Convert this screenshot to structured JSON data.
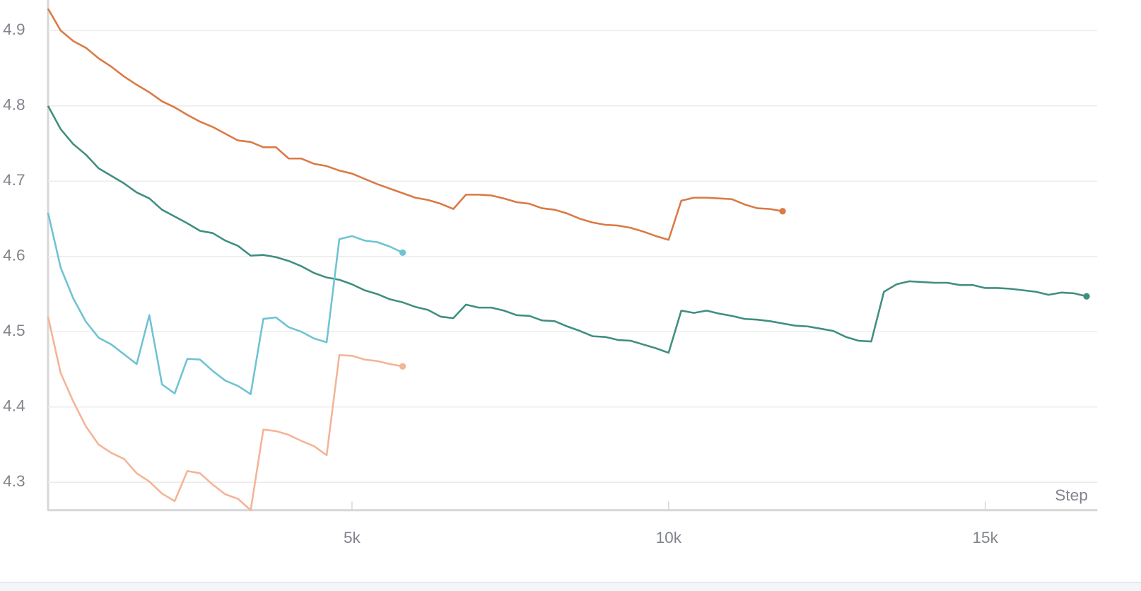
{
  "chart_data": {
    "type": "line",
    "x_label": "Step",
    "xlim": [
      200,
      16770
    ],
    "ylim": [
      4.26,
      4.94
    ],
    "xticks": [
      {
        "value": 5000,
        "label": "5k"
      },
      {
        "value": 10000,
        "label": "10k"
      },
      {
        "value": 15000,
        "label": "15k"
      }
    ],
    "yticks": [
      4.3,
      4.4,
      4.5,
      4.6,
      4.7,
      4.8,
      4.9
    ],
    "grid": true,
    "series": [
      {
        "color": "#da7a45",
        "x": [
          200,
          400,
          600,
          800,
          1000,
          1200,
          1400,
          1600,
          1800,
          2000,
          2200,
          2400,
          2600,
          2800,
          3000,
          3200,
          3400,
          3600,
          3800,
          4000,
          4200,
          4400,
          4600,
          4800,
          5000,
          5200,
          5400,
          5600,
          5800,
          6000,
          6200,
          6400,
          6600,
          6800,
          7000,
          7200,
          7400,
          7600,
          7800,
          8000,
          8200,
          8400,
          8600,
          8800,
          9000,
          9200,
          9400,
          9600,
          9800,
          10000,
          10200,
          10400,
          10600,
          10800,
          11000,
          11200,
          11400,
          11600,
          11800
        ],
        "values": [
          4.929,
          4.9,
          4.886,
          4.877,
          4.863,
          4.852,
          4.839,
          4.828,
          4.818,
          4.806,
          4.798,
          4.788,
          4.779,
          4.772,
          4.763,
          4.754,
          4.752,
          4.745,
          4.745,
          4.73,
          4.73,
          4.723,
          4.72,
          4.714,
          4.71,
          4.703,
          4.696,
          4.69,
          4.684,
          4.678,
          4.675,
          4.67,
          4.663,
          4.682,
          4.682,
          4.681,
          4.677,
          4.672,
          4.67,
          4.664,
          4.662,
          4.657,
          4.65,
          4.645,
          4.642,
          4.641,
          4.638,
          4.633,
          4.627,
          4.622,
          4.674,
          4.678,
          4.678,
          4.677,
          4.676,
          4.669,
          4.664,
          4.663,
          4.66
        ]
      },
      {
        "color": "#3f8f80",
        "x": [
          200,
          400,
          600,
          800,
          1000,
          1200,
          1400,
          1600,
          1800,
          2000,
          2200,
          2400,
          2600,
          2800,
          3000,
          3200,
          3400,
          3600,
          3800,
          4000,
          4200,
          4400,
          4600,
          4800,
          5000,
          5200,
          5400,
          5600,
          5800,
          6000,
          6200,
          6400,
          6600,
          6800,
          7000,
          7200,
          7400,
          7600,
          7800,
          8000,
          8200,
          8400,
          8600,
          8800,
          9000,
          9200,
          9400,
          9600,
          9800,
          10000,
          10200,
          10400,
          10600,
          10800,
          11000,
          11200,
          11400,
          11600,
          11800,
          12000,
          12200,
          12400,
          12600,
          12800,
          13000,
          13200,
          13400,
          13600,
          13800,
          14000,
          14200,
          14400,
          14600,
          14800,
          15000,
          15200,
          15400,
          15600,
          15800,
          16000,
          16200,
          16400,
          16600
        ],
        "values": [
          4.8,
          4.769,
          4.749,
          4.735,
          4.717,
          4.707,
          4.697,
          4.685,
          4.677,
          4.662,
          4.653,
          4.644,
          4.634,
          4.631,
          4.621,
          4.614,
          4.601,
          4.602,
          4.599,
          4.594,
          4.587,
          4.578,
          4.572,
          4.569,
          4.563,
          4.555,
          4.55,
          4.543,
          4.539,
          4.533,
          4.529,
          4.52,
          4.518,
          4.536,
          4.532,
          4.532,
          4.528,
          4.522,
          4.521,
          4.515,
          4.514,
          4.507,
          4.501,
          4.494,
          4.493,
          4.489,
          4.488,
          4.483,
          4.478,
          4.472,
          4.528,
          4.525,
          4.528,
          4.524,
          4.521,
          4.517,
          4.516,
          4.514,
          4.511,
          4.508,
          4.507,
          4.504,
          4.501,
          4.493,
          4.488,
          4.487,
          4.553,
          4.563,
          4.567,
          4.566,
          4.565,
          4.565,
          4.562,
          4.562,
          4.558,
          4.558,
          4.557,
          4.555,
          4.553,
          4.549,
          4.552,
          4.551,
          4.547
        ]
      },
      {
        "color": "#6ec3d4",
        "x": [
          200,
          400,
          600,
          800,
          1000,
          1200,
          1400,
          1600,
          1800,
          2000,
          2200,
          2400,
          2600,
          2800,
          3000,
          3200,
          3400,
          3600,
          3800,
          4000,
          4200,
          4400,
          4600,
          4800,
          5000,
          5200,
          5400,
          5600,
          5800
        ],
        "values": [
          4.658,
          4.585,
          4.544,
          4.513,
          4.492,
          4.483,
          4.47,
          4.457,
          4.522,
          4.43,
          4.418,
          4.464,
          4.463,
          4.448,
          4.435,
          4.428,
          4.417,
          4.517,
          4.519,
          4.506,
          4.5,
          4.491,
          4.486,
          4.623,
          4.627,
          4.621,
          4.619,
          4.613,
          4.605
        ]
      },
      {
        "color": "#f4b496",
        "x": [
          200,
          400,
          600,
          800,
          1000,
          1200,
          1400,
          1600,
          1800,
          2000,
          2200,
          2400,
          2600,
          2800,
          3000,
          3200,
          3400,
          3600,
          3800,
          4000,
          4200,
          4400,
          4600,
          4800,
          5000,
          5200,
          5400,
          5600,
          5800
        ],
        "values": [
          4.52,
          4.445,
          4.407,
          4.374,
          4.35,
          4.339,
          4.331,
          4.312,
          4.301,
          4.285,
          4.275,
          4.315,
          4.312,
          4.297,
          4.284,
          4.278,
          4.263,
          4.37,
          4.368,
          4.363,
          4.355,
          4.348,
          4.336,
          4.469,
          4.468,
          4.463,
          4.461,
          4.457,
          4.454
        ]
      }
    ]
  }
}
